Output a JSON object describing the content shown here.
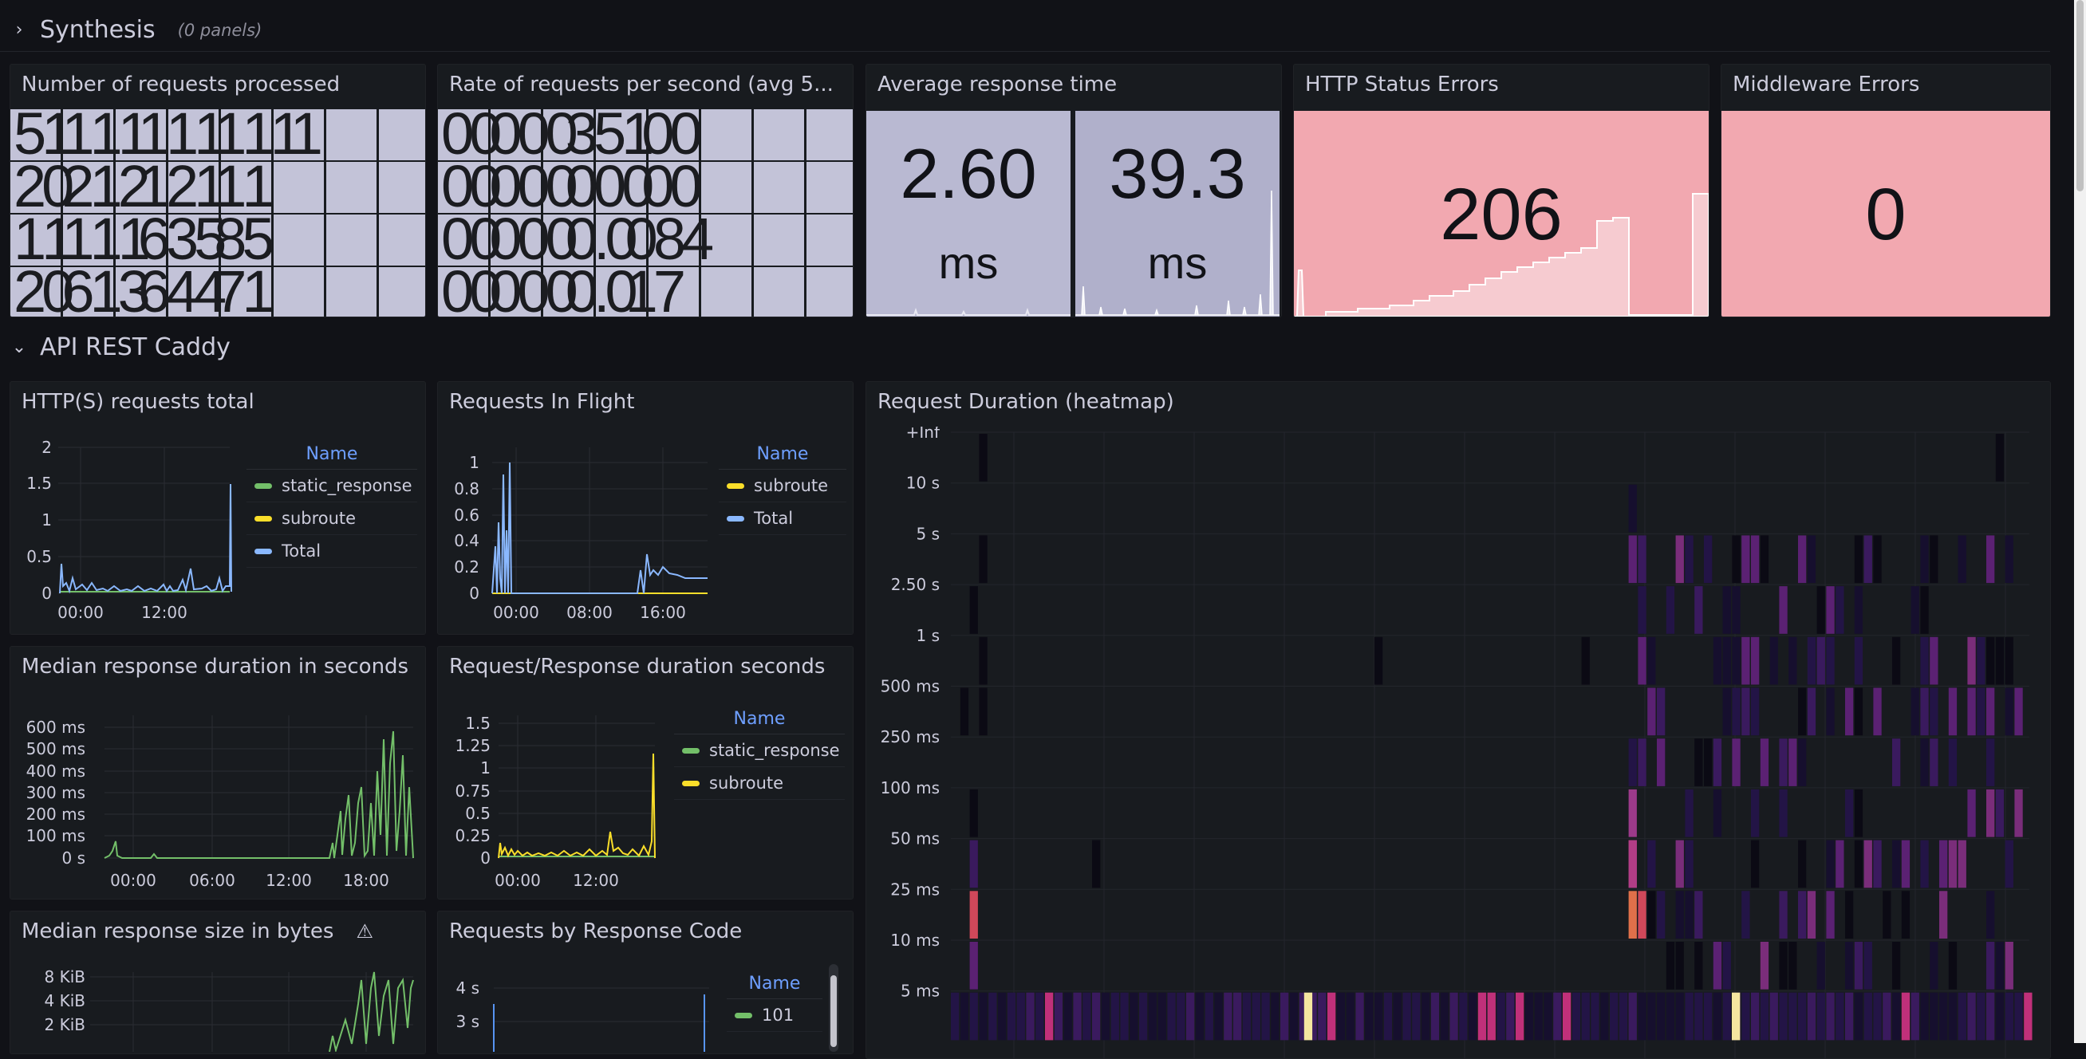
{
  "rows": {
    "synthesis": {
      "title": "Synthesis",
      "subtitle": "(0 panels)"
    },
    "api": {
      "title": "API REST Caddy"
    }
  },
  "panels": {
    "requests_processed": {
      "title": "Number of requests processed",
      "value_rows": [
        [
          "5",
          "1",
          "1",
          "1",
          "1",
          "1",
          "1",
          "1",
          "1",
          "1",
          "1",
          "1"
        ],
        [
          "2",
          "0",
          "2",
          "1",
          "2",
          "1",
          "2",
          "1",
          "1",
          "1"
        ],
        [
          "1",
          "1",
          "1",
          "1",
          "1",
          "6",
          "3",
          "5",
          "8",
          "5"
        ],
        [
          "2",
          "0",
          "6",
          "1",
          "3",
          "6",
          "4",
          "4",
          "7",
          "1"
        ]
      ]
    },
    "request_rate": {
      "title": "Rate of requests per second (avg 5...",
      "value_rows": [
        [
          "0",
          "0",
          "0",
          "0",
          "0",
          "3",
          "5",
          "1",
          "0",
          "0"
        ],
        [
          "0",
          "0",
          "0",
          "0",
          "0",
          "0",
          "0",
          "0",
          "0",
          "0"
        ],
        [
          "0",
          "0",
          "0",
          "0",
          "0",
          "0",
          ".",
          "0",
          "0",
          "8",
          "4"
        ],
        [
          "0",
          "0",
          "0",
          "0",
          "0",
          "0",
          ".",
          "0",
          "1",
          "7"
        ]
      ]
    },
    "avg_response": {
      "title": "Average response time",
      "cells": [
        {
          "value": "2.60",
          "unit": "ms"
        },
        {
          "value": "39.3",
          "unit": "ms"
        }
      ]
    },
    "http_status_errors": {
      "title": "HTTP Status Errors",
      "value": "206"
    },
    "middleware_errors": {
      "title": "Middleware Errors",
      "value": "0"
    },
    "http_requests_total": {
      "title": "HTTP(S) requests total",
      "y_ticks": [
        "2",
        "1.5",
        "1",
        "0.5",
        "0"
      ],
      "x_ticks": [
        "00:00",
        "12:00"
      ],
      "legend_header": "Name",
      "legend": [
        {
          "name": "static_response",
          "color": "#73bf69"
        },
        {
          "name": "subroute",
          "color": "#fade2a"
        },
        {
          "name": "Total",
          "color": "#8ab8ff"
        }
      ]
    },
    "requests_in_flight": {
      "title": "Requests In Flight",
      "y_ticks": [
        "1",
        "0.8",
        "0.6",
        "0.4",
        "0.2",
        "0"
      ],
      "x_ticks": [
        "00:00",
        "08:00",
        "16:00"
      ],
      "legend_header": "Name",
      "legend": [
        {
          "name": "subroute",
          "color": "#fade2a"
        },
        {
          "name": "Total",
          "color": "#8ab8ff"
        }
      ]
    },
    "median_duration": {
      "title": "Median response duration in seconds",
      "y_ticks": [
        "600 ms",
        "500 ms",
        "400 ms",
        "300 ms",
        "200 ms",
        "100 ms",
        "0 s"
      ],
      "x_ticks": [
        "00:00",
        "06:00",
        "12:00",
        "18:00"
      ]
    },
    "req_resp_duration": {
      "title": "Request/Response duration seconds",
      "y_ticks": [
        "1.5",
        "1.25",
        "1",
        "0.75",
        "0.5",
        "0.25",
        "0"
      ],
      "x_ticks": [
        "00:00",
        "12:00"
      ],
      "legend_header": "Name",
      "legend": [
        {
          "name": "static_response",
          "color": "#73bf69"
        },
        {
          "name": "subroute",
          "color": "#fade2a"
        }
      ]
    },
    "median_size": {
      "title": "Median response size in bytes",
      "y_ticks": [
        "8 KiB",
        "4 KiB",
        "2 KiB"
      ]
    },
    "by_response_code": {
      "title": "Requests by Response Code",
      "y_ticks": [
        "4 s",
        "3 s"
      ],
      "legend_header": "Name",
      "legend": [
        {
          "name": "101",
          "color": "#73bf69"
        }
      ]
    },
    "duration_heatmap": {
      "title": "Request Duration (heatmap)",
      "y_ticks": [
        "+Inf",
        "10 s",
        "5 s",
        "2.50 s",
        "1 s",
        "500 ms",
        "250 ms",
        "100 ms",
        "50 ms",
        "25 ms",
        "10 ms",
        "5 ms"
      ]
    }
  },
  "colors": {
    "stat_purple": "#b9b9d2",
    "stat_red": "#f2a8b0",
    "green": "#73bf69",
    "yellow": "#fade2a",
    "blue": "#8ab8ff",
    "legend_header": "#6e9fff"
  }
}
